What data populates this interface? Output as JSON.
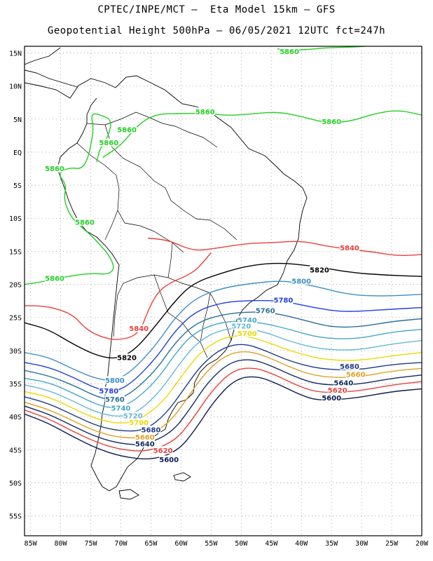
{
  "header": {
    "line1": "CPTEC/INPE/MCT —  Eta Model 15km — GFS",
    "line2": "Geopotential Height 500hPa — 06/05/2021 12UTC fct=247h"
  },
  "axes": {
    "lat_labels": [
      "15N",
      "10N",
      "5N",
      "EQ",
      "5S",
      "10S",
      "15S",
      "20S",
      "25S",
      "30S",
      "35S",
      "40S",
      "45S",
      "50S",
      "55S"
    ],
    "lat_values": [
      15,
      10,
      5,
      0,
      -5,
      -10,
      -15,
      -20,
      -25,
      -30,
      -35,
      -40,
      -45,
      -50,
      -55
    ],
    "lon_labels": [
      "85W",
      "80W",
      "75W",
      "70W",
      "65W",
      "60W",
      "55W",
      "50W",
      "45W",
      "40W",
      "35W",
      "30W",
      "25W",
      "20W"
    ],
    "lon_values": [
      -85,
      -80,
      -75,
      -70,
      -65,
      -60,
      -55,
      -50,
      -45,
      -40,
      -35,
      -30,
      -25,
      -20
    ],
    "lon_range": [
      -86,
      -20
    ],
    "lat_range": [
      -58,
      16
    ],
    "grid": "dotted"
  },
  "contours": [
    {
      "value": "5860",
      "color": "#22d022"
    },
    {
      "value": "5840",
      "color": "#e8413c"
    },
    {
      "value": "5820",
      "color": "#000000"
    },
    {
      "value": "5800",
      "color": "#3a8fc4"
    },
    {
      "value": "5780",
      "color": "#1f3fe0"
    },
    {
      "value": "5760",
      "color": "#2a6f9a"
    },
    {
      "value": "5740",
      "color": "#43a8c8"
    },
    {
      "value": "5720",
      "color": "#63b8d8"
    },
    {
      "value": "5700",
      "color": "#f0d800"
    },
    {
      "value": "5680",
      "color": "#1f3a8a"
    },
    {
      "value": "5660",
      "color": "#e0a020"
    },
    {
      "value": "5640",
      "color": "#102a60"
    },
    {
      "value": "5620",
      "color": "#e8413c"
    },
    {
      "value": "5600",
      "color": "#0a1a50"
    }
  ],
  "contour_labels": [
    {
      "value": "5860",
      "lon": -42,
      "lat": 15.1,
      "color": "#22d022"
    },
    {
      "value": "5860",
      "lon": -56,
      "lat": 6.0,
      "color": "#22d022"
    },
    {
      "value": "5860",
      "lon": -35,
      "lat": 4.5,
      "color": "#22d022"
    },
    {
      "value": "5860",
      "lon": -69,
      "lat": 3.3,
      "color": "#22d022"
    },
    {
      "value": "5860",
      "lon": -72,
      "lat": 1.3,
      "color": "#22d022"
    },
    {
      "value": "5860",
      "lon": -81,
      "lat": -2.6,
      "color": "#22d022"
    },
    {
      "value": "5860",
      "lon": -76,
      "lat": -10.7,
      "color": "#22d022"
    },
    {
      "value": "5860",
      "lon": -81,
      "lat": -19.2,
      "color": "#22d022"
    },
    {
      "value": "5840",
      "lon": -32,
      "lat": -14.6,
      "color": "#e8413c"
    },
    {
      "value": "5840",
      "lon": -67,
      "lat": -26.8,
      "color": "#e8413c"
    },
    {
      "value": "5820",
      "lon": -37,
      "lat": -17.9,
      "color": "#000000"
    },
    {
      "value": "5820",
      "lon": -69,
      "lat": -31.2,
      "color": "#000000"
    },
    {
      "value": "5800",
      "lon": -40,
      "lat": -19.6,
      "color": "#3a8fc4"
    },
    {
      "value": "5800",
      "lon": -71,
      "lat": -34.6,
      "color": "#3a8fc4"
    },
    {
      "value": "5780",
      "lon": -43,
      "lat": -22.5,
      "color": "#1f3fe0"
    },
    {
      "value": "5780",
      "lon": -72,
      "lat": -36.2,
      "color": "#1f3fe0"
    },
    {
      "value": "5760",
      "lon": -46,
      "lat": -24.1,
      "color": "#2a6f9a"
    },
    {
      "value": "5760",
      "lon": -71,
      "lat": -37.5,
      "color": "#2a6f9a"
    },
    {
      "value": "5740",
      "lon": -49,
      "lat": -25.5,
      "color": "#43a8c8"
    },
    {
      "value": "5740",
      "lon": -70,
      "lat": -38.8,
      "color": "#43a8c8"
    },
    {
      "value": "5720",
      "lon": -50,
      "lat": -26.4,
      "color": "#63b8d8"
    },
    {
      "value": "5720",
      "lon": -68,
      "lat": -40.0,
      "color": "#63b8d8"
    },
    {
      "value": "5700",
      "lon": -49,
      "lat": -27.5,
      "color": "#f0d800"
    },
    {
      "value": "5700",
      "lon": -67,
      "lat": -41.0,
      "color": "#f0d800"
    },
    {
      "value": "5680",
      "lon": -32,
      "lat": -32.5,
      "color": "#1f3a8a"
    },
    {
      "value": "5680",
      "lon": -65,
      "lat": -42.1,
      "color": "#1f3a8a"
    },
    {
      "value": "5660",
      "lon": -31,
      "lat": -33.7,
      "color": "#e0a020"
    },
    {
      "value": "5660",
      "lon": -66,
      "lat": -43.2,
      "color": "#e0a020"
    },
    {
      "value": "5640",
      "lon": -33,
      "lat": -35.0,
      "color": "#102a60"
    },
    {
      "value": "5640",
      "lon": -66,
      "lat": -44.2,
      "color": "#102a60"
    },
    {
      "value": "5620",
      "lon": -34,
      "lat": -36.1,
      "color": "#e8413c"
    },
    {
      "value": "5620",
      "lon": -63,
      "lat": -45.2,
      "color": "#e8413c"
    },
    {
      "value": "5600",
      "lon": -35,
      "lat": -37.3,
      "color": "#0a1a50"
    },
    {
      "value": "5600",
      "lon": -62,
      "lat": -46.6,
      "color": "#0a1a50"
    }
  ]
}
